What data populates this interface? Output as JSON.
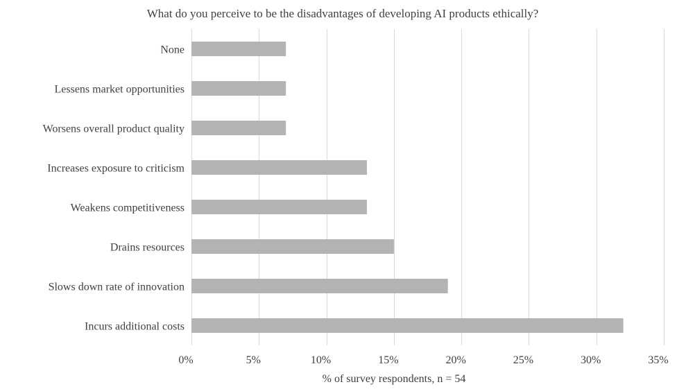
{
  "chart_data": {
    "type": "bar",
    "orientation": "horizontal",
    "title": "What do you perceive to be the disadvantages of developing AI products ethically?",
    "xlabel": "% of survey respondents, n = 54",
    "ylabel": "",
    "categories": [
      "None",
      "Lessens market opportunities",
      "Worsens overall product quality",
      "Increases exposure to criticism",
      "Weakens competitiveness",
      "Drains resources",
      "Slows down rate of innovation",
      "Incurs additional costs"
    ],
    "values": [
      7,
      7,
      7,
      13,
      13,
      15,
      19,
      32
    ],
    "value_unit": "%",
    "xlim": [
      0,
      35
    ],
    "x_ticks": [
      0,
      5,
      10,
      15,
      20,
      25,
      30,
      35
    ],
    "x_tick_labels": [
      "0%",
      "5%",
      "10%",
      "15%",
      "20%",
      "25%",
      "30%",
      "35%"
    ],
    "grid": "vertical",
    "legend": "none",
    "bar_color": "#b3b3b3",
    "grid_color": "#d9d9d9",
    "text_color": "#404040"
  }
}
